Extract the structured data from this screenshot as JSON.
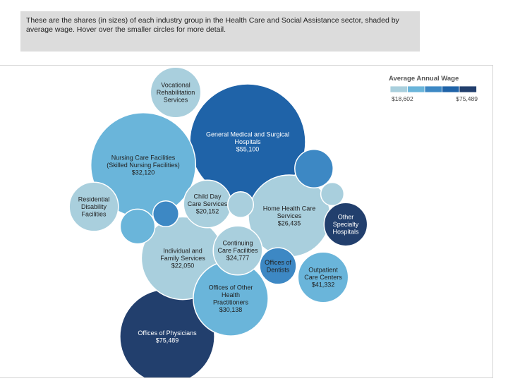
{
  "intro_text": "These are the shares (in sizes) of each industry group in the Health Care and Social Assistance sector, shaded by average wage. Hover over the smaller circles for more detail.",
  "colors": {
    "scale": [
      "#a9cfdd",
      "#6ab5da",
      "#3d88c4",
      "#1f63a8",
      "#223f6d"
    ],
    "dark_text": "#222222",
    "light_text": "#ffffff",
    "bubble_stroke": "#ffffff"
  },
  "chart_data": {
    "type": "bubble",
    "title": "",
    "legend": {
      "title": "Average Annual Wage",
      "min_label": "$18,602",
      "max_label": "$75,489",
      "min": 18602,
      "max": 75489,
      "placement": "top-right"
    },
    "series": [
      {
        "name": "General Medical and Surgical Hospitals",
        "lines": [
          "General Medical and Surgical",
          "Hospitals",
          "$55,100"
        ],
        "wage": 55100,
        "share": 1.0
      },
      {
        "name": "Nursing Care Facilities (Skilled Nursing Facilities)",
        "lines": [
          "Nursing Care Facilities",
          "(Skilled Nursing Facilities)",
          "$32,120"
        ],
        "wage": 32120,
        "share": 0.82
      },
      {
        "name": "Offices of Physicians",
        "lines": [
          "Offices of Physicians",
          "$75,489"
        ],
        "wage": 75489,
        "share": 0.67
      },
      {
        "name": "Home Health Care Services",
        "lines": [
          "Home Health Care",
          "Services",
          "$26,435"
        ],
        "wage": 26435,
        "share": 0.5
      },
      {
        "name": "Individual and Family Services",
        "lines": [
          "Individual and",
          "Family Services",
          "$22,050"
        ],
        "wage": 22050,
        "share": 0.51
      },
      {
        "name": "Offices of Other Health Practitioners",
        "lines": [
          "Offices of Other",
          "Health",
          "Practitioners",
          "$30,138"
        ],
        "wage": 30138,
        "share": 0.42
      },
      {
        "name": "Vocational Rehabilitation Services",
        "lines": [
          "Vocational",
          "Rehabilitation",
          "Services"
        ],
        "wage": 24000,
        "share": 0.19
      },
      {
        "name": "Child Day Care Services",
        "lines": [
          "Child Day",
          "Care Services",
          "$20,152"
        ],
        "wage": 20152,
        "share": 0.17
      },
      {
        "name": "Continuing Care Facilities",
        "lines": [
          "Continuing",
          "Care Facilities",
          "$24,777"
        ],
        "wage": 24777,
        "share": 0.18
      },
      {
        "name": "Residential Disability Facilities",
        "lines": [
          "Residential",
          "Disability",
          "Facilities"
        ],
        "wage": 24500,
        "share": 0.18
      },
      {
        "name": "Outpatient Care Centers",
        "lines": [
          "Outpatient",
          "Care Centers",
          "$41,332"
        ],
        "wage": 41332,
        "share": 0.19
      },
      {
        "name": "Other Specialty Hospitals",
        "lines": [
          "Other",
          "Specialty",
          "Hospitals"
        ],
        "wage": 68000,
        "share": 0.14
      },
      {
        "name": "Offices of Dentists",
        "lines": [
          "Offices of",
          "Dentists"
        ],
        "wage": 46000,
        "share": 0.1
      },
      {
        "name": "Unlabeled group A",
        "lines": [],
        "wage": 52000,
        "share": 0.11
      },
      {
        "name": "Unlabeled group B",
        "lines": [],
        "wage": 48000,
        "share": 0.05
      },
      {
        "name": "Unlabeled group C",
        "lines": [],
        "wage": 34000,
        "share": 0.09
      },
      {
        "name": "Unlabeled group D",
        "lines": [],
        "wage": 24000,
        "share": 0.05
      },
      {
        "name": "Unlabeled group E",
        "lines": [],
        "wage": 24000,
        "share": 0.04
      }
    ]
  }
}
